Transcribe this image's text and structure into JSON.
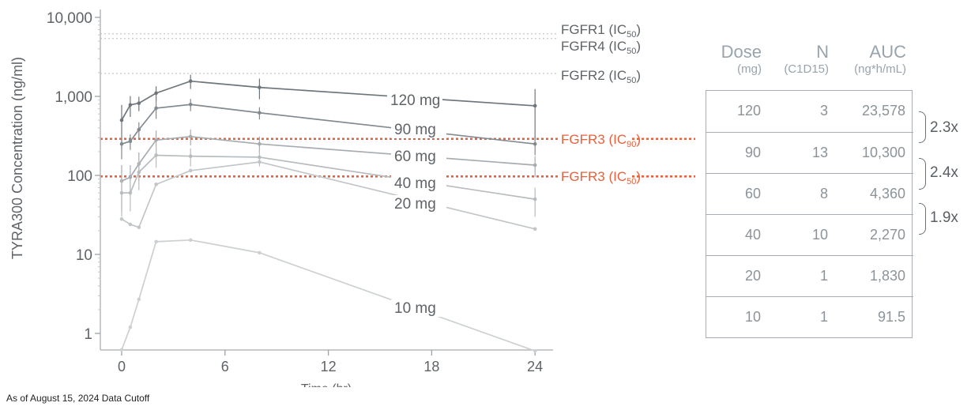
{
  "chart_data": {
    "type": "line",
    "yscale": "log",
    "ylabel": "TYRA300 Concentration (ng/ml)",
    "xlabel": "Time (hr)",
    "x_ticks": [
      0,
      6,
      12,
      18,
      24
    ],
    "x_tick_labels": [
      "0",
      "6",
      "12",
      "18",
      "24"
    ],
    "xlim": [
      -1,
      25
    ],
    "y_ticks": [
      1,
      10,
      100,
      1000,
      10000
    ],
    "y_tick_labels": [
      "1",
      "10",
      "100",
      "1,000",
      "10,000"
    ],
    "ylim": [
      0.6,
      10000
    ],
    "reference_lines": [
      {
        "name": "FGFR1",
        "sub": "50",
        "value": 6200,
        "color": "#c6c6c6",
        "style": "dotted"
      },
      {
        "name": "FGFR4",
        "sub": "50",
        "value": 5400,
        "color": "#c6c6c6",
        "style": "dotted"
      },
      {
        "name": "FGFR2",
        "sub": "50",
        "value": 1950,
        "color": "#c6c6c6",
        "style": "dotted"
      },
      {
        "name": "FGFR3",
        "sub": "90",
        "value": 290,
        "color": "#e8603c",
        "style": "dotted-bold"
      },
      {
        "name": "FGFR3",
        "sub": "50",
        "value": 97,
        "color": "#e8603c",
        "style": "dotted-bold"
      }
    ],
    "series": [
      {
        "name": "120 mg",
        "color": "#6f767b",
        "x": [
          0,
          0.5,
          1,
          2,
          4,
          8,
          24
        ],
        "values": [
          500,
          780,
          820,
          1100,
          1560,
          1300,
          760
        ],
        "err": [
          280,
          230,
          170,
          240,
          320,
          380,
          480
        ]
      },
      {
        "name": "90 mg",
        "color": "#838a8f",
        "x": [
          0,
          0.5,
          1,
          2,
          4,
          8,
          24
        ],
        "values": [
          250,
          270,
          380,
          710,
          790,
          620,
          250
        ],
        "err": [
          90,
          60,
          90,
          190,
          140,
          110,
          70
        ]
      },
      {
        "name": "60 mg",
        "color": "#a7acb0",
        "x": [
          0,
          0.5,
          1,
          2,
          4,
          8,
          24
        ],
        "values": [
          85,
          95,
          140,
          280,
          310,
          250,
          135
        ],
        "err": [
          50,
          40,
          55,
          90,
          70,
          60,
          40
        ]
      },
      {
        "name": "40 mg",
        "color": "#b8bcbf",
        "x": [
          0,
          0.5,
          1,
          2,
          4,
          8,
          24
        ],
        "values": [
          60,
          60,
          110,
          180,
          175,
          170,
          50
        ],
        "err": [
          30,
          25,
          45,
          55,
          45,
          40,
          20
        ]
      },
      {
        "name": "20 mg",
        "color": "#c2c6c9",
        "x": [
          0,
          0.5,
          1,
          2,
          4,
          8,
          24
        ],
        "values": [
          28,
          24,
          22,
          77,
          115,
          148,
          21
        ],
        "err": [
          0,
          0,
          0,
          0,
          0,
          0,
          0
        ]
      },
      {
        "name": "10 mg",
        "color": "#cdd0d2",
        "x": [
          0,
          0.5,
          1,
          2,
          4,
          8,
          24
        ],
        "values": [
          0.62,
          1.2,
          2.7,
          14.5,
          15.2,
          10.5,
          0.6
        ],
        "err": [
          0,
          0,
          0,
          0,
          0,
          0,
          0
        ]
      }
    ]
  },
  "table": {
    "headers": [
      {
        "main": "Dose",
        "sub": "(mg)"
      },
      {
        "main": "N",
        "sub": "(C1D15)"
      },
      {
        "main": "AUC",
        "sub": "(ng*h/mL)"
      }
    ],
    "rows": [
      {
        "dose": "120",
        "n": "3",
        "auc": "23,578"
      },
      {
        "dose": "90",
        "n": "13",
        "auc": "10,300"
      },
      {
        "dose": "60",
        "n": "8",
        "auc": "4,360"
      },
      {
        "dose": "40",
        "n": "10",
        "auc": "2,270"
      },
      {
        "dose": "20",
        "n": "1",
        "auc": "1,830"
      },
      {
        "dose": "10",
        "n": "1",
        "auc": "91.5"
      }
    ],
    "ratios": [
      "2.3x",
      "2.4x",
      "1.9x"
    ]
  },
  "footnote": "As of August 15, 2024 Data Cutoff"
}
